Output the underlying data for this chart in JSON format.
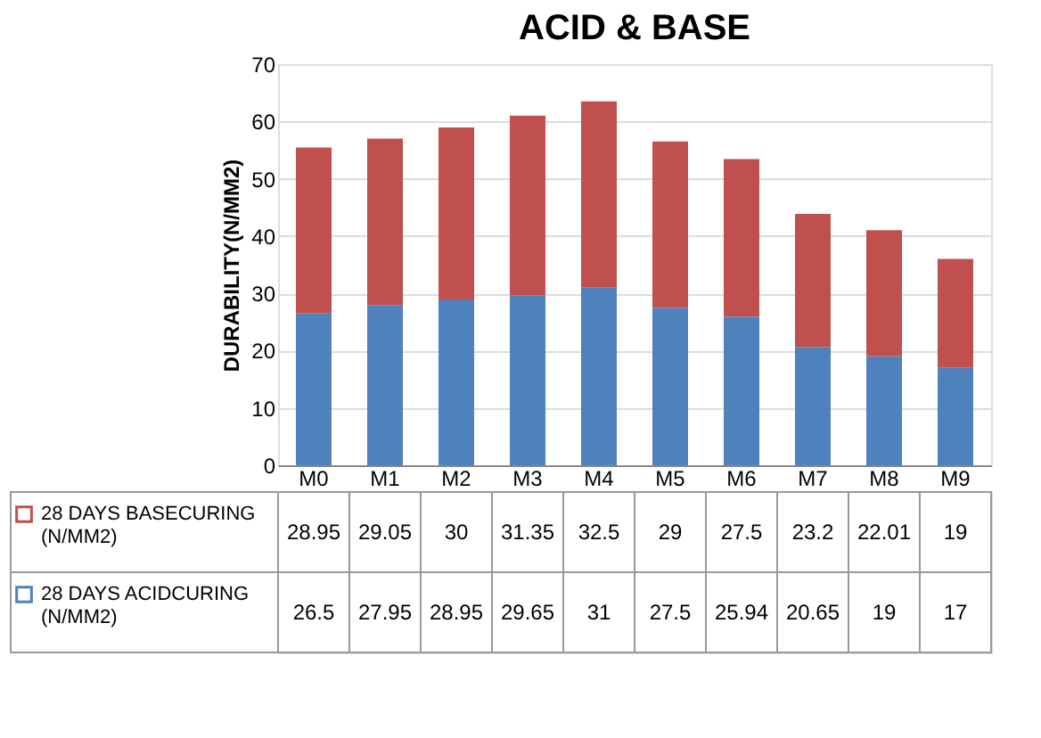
{
  "chart_data": {
    "type": "bar",
    "title": "ACID & BASE",
    "ylabel": "DURABILITY(N/MM2)",
    "categories": [
      "M0",
      "M1",
      "M2",
      "M3",
      "M4",
      "M5",
      "M6",
      "M7",
      "M8",
      "M9"
    ],
    "series": [
      {
        "name": "28 DAYS ACIDCURING (N/MM2)",
        "color": "#4f81bd",
        "values": [
          26.5,
          27.95,
          28.95,
          29.65,
          31,
          27.5,
          25.94,
          20.65,
          19,
          17
        ]
      },
      {
        "name": "28 DAYS BASECURING (N/MM2)",
        "color": "#c0504d",
        "values": [
          28.95,
          29.05,
          30,
          31.35,
          32.5,
          29,
          27.5,
          23.2,
          22.01,
          19
        ]
      }
    ],
    "stacked": true,
    "ylim": [
      0,
      70
    ],
    "yticks": [
      0,
      10,
      20,
      30,
      40,
      50,
      60,
      70
    ],
    "grid": "y",
    "legend": "bottom",
    "data_labels": true
  }
}
